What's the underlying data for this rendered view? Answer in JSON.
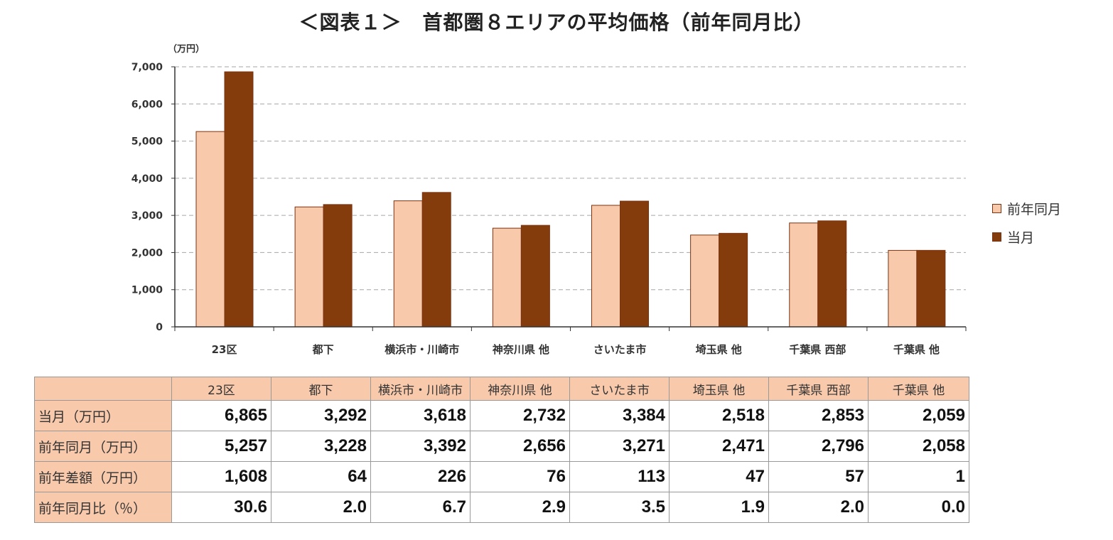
{
  "chart_data": {
    "type": "bar",
    "title": "＜図表１＞　首都圏８エリアの平均価格（前年同月比）",
    "unit_label": "（万円）",
    "categories": [
      "23区",
      "都下",
      "横浜市・川崎市",
      "神奈川県 他",
      "さいたま市",
      "埼玉県 他",
      "千葉県 西部",
      "千葉県 他"
    ],
    "series": [
      {
        "name": "前年同月",
        "color": "#f8c9ab",
        "values": [
          5257,
          3228,
          3392,
          2656,
          3271,
          2471,
          2796,
          2058
        ]
      },
      {
        "name": "当月",
        "color": "#843c0c",
        "values": [
          6865,
          3292,
          3618,
          2732,
          3384,
          2518,
          2853,
          2059
        ]
      }
    ],
    "ylim": [
      0,
      7000
    ],
    "yticks": [
      0,
      1000,
      2000,
      3000,
      4000,
      5000,
      6000,
      7000
    ],
    "ytick_labels": [
      "0",
      "1,000",
      "2,000",
      "3,000",
      "4,000",
      "5,000",
      "6,000",
      "7,000"
    ],
    "grid": "horizontal dashed",
    "legend_position": "right"
  },
  "table": {
    "header": [
      "",
      "23区",
      "都下",
      "横浜市・川崎市",
      "神奈川県 他",
      "さいたま市",
      "埼玉県 他",
      "千葉県 西部",
      "千葉県 他"
    ],
    "rows": [
      {
        "label": "当月（万円）",
        "values": [
          "6,865",
          "3,292",
          "3,618",
          "2,732",
          "3,384",
          "2,518",
          "2,853",
          "2,059"
        ]
      },
      {
        "label": "前年同月（万円）",
        "values": [
          "5,257",
          "3,228",
          "3,392",
          "2,656",
          "3,271",
          "2,471",
          "2,796",
          "2,058"
        ]
      },
      {
        "label": "前年差額（万円）",
        "values": [
          "1,608",
          "64",
          "226",
          "76",
          "113",
          "47",
          "57",
          "1"
        ]
      },
      {
        "label": "前年同月比（％）",
        "values": [
          "30.6",
          "2.0",
          "6.7",
          "2.9",
          "3.5",
          "1.9",
          "2.0",
          "0.0"
        ]
      }
    ]
  }
}
